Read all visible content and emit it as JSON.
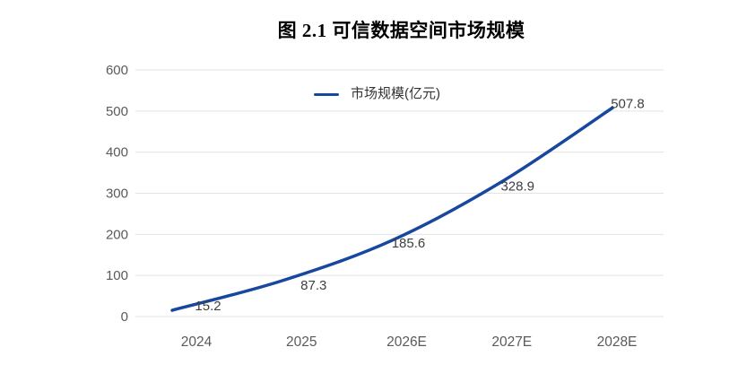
{
  "chart_data": {
    "type": "line",
    "title": "图 2.1 可信数据空间市场规模",
    "series_name": "市场规模(亿元)",
    "categories": [
      "2024",
      "2025",
      "2026E",
      "2027E",
      "2028E"
    ],
    "values": [
      15.2,
      87.3,
      185.6,
      328.9,
      507.8
    ],
    "value_labels": [
      "15.2",
      "87.3",
      "185.6",
      "328.9",
      "507.8"
    ],
    "ylim": [
      0,
      600
    ],
    "yticks": [
      0,
      100,
      200,
      300,
      400,
      500,
      600
    ],
    "grid": true,
    "smooth": true,
    "legend_position": "top-center",
    "line_color": "#17479e",
    "grid_color": "#e3e3e3",
    "tick_color": "#5a5a5a",
    "data_label_color": "#3f3f3f",
    "background_color": "#ffffff"
  }
}
